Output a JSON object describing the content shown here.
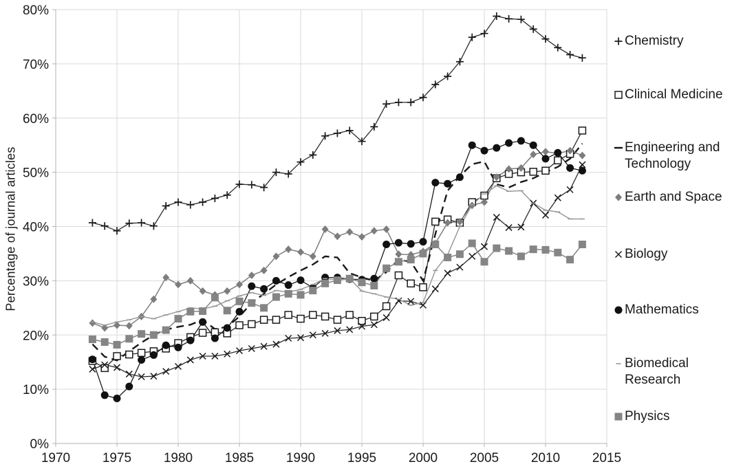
{
  "chart_data": {
    "type": "line",
    "title": "",
    "xlabel": "",
    "ylabel": "Percentage of journal articles",
    "xlim": [
      1970,
      2015
    ],
    "ylim": [
      0,
      80
    ],
    "grid": true,
    "legend_position": "right",
    "x_tick_values": [
      1970,
      1975,
      1980,
      1985,
      1990,
      1995,
      2000,
      2005,
      2010,
      2015
    ],
    "x_tick_labels": [
      "1970",
      "1975",
      "1980",
      "1985",
      "1990",
      "1995",
      "2000",
      "2005",
      "2010",
      "2015"
    ],
    "y_tick_values": [
      0,
      10,
      20,
      30,
      40,
      50,
      60,
      70,
      80
    ],
    "y_tick_labels": [
      "0%",
      "10%",
      "20%",
      "30%",
      "40%",
      "50%",
      "60%",
      "70%",
      "80%"
    ],
    "x": [
      1973,
      1974,
      1975,
      1976,
      1977,
      1978,
      1979,
      1980,
      1981,
      1982,
      1983,
      1984,
      1985,
      1986,
      1987,
      1988,
      1989,
      1990,
      1991,
      1992,
      1993,
      1994,
      1995,
      1996,
      1997,
      1998,
      1999,
      2000,
      2001,
      2002,
      2003,
      2004,
      2005,
      2006,
      2007,
      2008,
      2009,
      2010,
      2011,
      2012,
      2013
    ],
    "series": [
      {
        "name": "Chemistry",
        "marker": "plus",
        "line": "solid",
        "color": "#2b2b2b",
        "values": [
          40.7,
          40.1,
          39.2,
          40.6,
          40.7,
          40.1,
          43.8,
          44.5,
          44.0,
          44.5,
          45.2,
          45.8,
          47.8,
          47.7,
          47.2,
          50.0,
          49.7,
          51.9,
          53.2,
          56.7,
          57.2,
          57.7,
          55.7,
          58.4,
          62.6,
          62.9,
          62.9,
          63.8,
          66.2,
          67.7,
          70.4,
          74.9,
          75.6,
          78.8,
          78.3,
          78.2,
          76.4,
          74.6,
          73.0,
          71.7,
          71.1
        ]
      },
      {
        "name": "Clinical Medicine",
        "marker": "open-square",
        "line": "solid",
        "color": "#2b2b2b",
        "values": [
          15.2,
          13.9,
          16.1,
          16.4,
          16.7,
          17.0,
          17.5,
          18.5,
          19.6,
          20.4,
          20.5,
          20.3,
          21.8,
          22.0,
          22.8,
          22.8,
          23.7,
          23.0,
          23.7,
          23.4,
          22.8,
          23.7,
          22.6,
          23.4,
          25.3,
          31.0,
          29.5,
          28.8,
          40.9,
          41.3,
          40.7,
          44.5,
          45.7,
          48.9,
          49.7,
          50.0,
          50.1,
          50.3,
          52.2,
          53.4,
          57.7
        ]
      },
      {
        "name": "Engineering and Technology",
        "marker": "none",
        "line": "dashed",
        "color": "#1a1a1a",
        "values": [
          18.3,
          16.0,
          15.3,
          17.0,
          18.6,
          20.0,
          21.0,
          21.5,
          21.9,
          22.8,
          21.1,
          21.5,
          23.4,
          25.9,
          27.6,
          29.3,
          30.7,
          31.9,
          33.0,
          34.5,
          34.3,
          31.4,
          30.6,
          30.0,
          31.6,
          33.9,
          33.5,
          30.0,
          38.6,
          46.6,
          49.3,
          51.5,
          52.0,
          47.8,
          47.2,
          48.2,
          48.9,
          50.0,
          51.0,
          52.5,
          55.3
        ]
      },
      {
        "name": "Earth and Space",
        "marker": "diamond",
        "line": "solid",
        "color": "#7d7d7d",
        "values": [
          22.2,
          21.3,
          21.8,
          21.7,
          23.4,
          26.6,
          30.6,
          29.3,
          30.0,
          28.1,
          27.4,
          28.1,
          29.3,
          31.0,
          31.9,
          34.5,
          35.8,
          35.3,
          34.5,
          39.5,
          38.2,
          39.0,
          38.1,
          39.2,
          39.5,
          34.9,
          34.8,
          35.4,
          36.9,
          40.7,
          40.9,
          43.9,
          44.5,
          49.1,
          50.6,
          50.8,
          53.3,
          53.8,
          53.5,
          54.0,
          53.1
        ]
      },
      {
        "name": "Biology",
        "marker": "cross",
        "line": "solid",
        "color": "#2b2b2b",
        "values": [
          13.7,
          14.5,
          14.0,
          12.8,
          12.3,
          12.4,
          13.3,
          14.2,
          15.4,
          16.1,
          16.1,
          16.5,
          17.1,
          17.5,
          17.9,
          18.3,
          19.4,
          19.5,
          20.0,
          20.3,
          20.8,
          21.0,
          21.6,
          21.9,
          23.2,
          26.3,
          26.2,
          25.5,
          28.5,
          31.4,
          32.5,
          34.5,
          36.3,
          41.7,
          39.8,
          39.9,
          44.3,
          42.1,
          45.3,
          46.8,
          51.4
        ]
      },
      {
        "name": "Mathematics",
        "marker": "circle",
        "line": "solid",
        "color": "#1a1a1a",
        "values": [
          15.5,
          8.9,
          8.3,
          10.5,
          15.4,
          16.3,
          18.1,
          17.7,
          19.0,
          22.4,
          19.4,
          21.3,
          24.3,
          29.0,
          28.5,
          30.0,
          29.2,
          30.1,
          28.7,
          30.6,
          30.6,
          30.3,
          30.2,
          30.4,
          36.7,
          37.0,
          36.8,
          37.2,
          48.1,
          47.9,
          49.1,
          55.0,
          54.0,
          54.5,
          55.4,
          55.8,
          55.0,
          52.5,
          53.6,
          50.8,
          50.3
        ]
      },
      {
        "name": "Biomedical Research",
        "marker": "dash",
        "line": "solid",
        "color": "#9a9a9a",
        "values": [
          22.4,
          21.8,
          22.4,
          22.8,
          23.4,
          23.0,
          23.7,
          24.3,
          25.0,
          24.8,
          25.3,
          26.3,
          27.2,
          27.8,
          27.3,
          28.2,
          27.9,
          28.4,
          29.3,
          30.4,
          30.2,
          30.4,
          28.1,
          27.6,
          27.0,
          26.6,
          25.5,
          26.0,
          31.9,
          34.8,
          40.0,
          44.0,
          46.0,
          47.5,
          46.5,
          46.6,
          44.3,
          43.0,
          42.7,
          41.4,
          41.4
        ]
      },
      {
        "name": "Physics",
        "marker": "square",
        "line": "solid",
        "color": "#858585",
        "values": [
          19.2,
          18.7,
          18.2,
          19.3,
          20.2,
          20.0,
          20.9,
          23.0,
          24.3,
          24.4,
          26.9,
          24.5,
          26.2,
          25.9,
          25.0,
          27.0,
          27.6,
          27.4,
          28.2,
          29.5,
          30.1,
          30.4,
          29.7,
          29.1,
          32.3,
          33.5,
          33.9,
          35.0,
          36.7,
          34.3,
          34.9,
          36.9,
          33.5,
          36.0,
          35.5,
          34.5,
          35.8,
          35.7,
          35.2,
          33.9,
          36.7
        ]
      }
    ]
  },
  "legend": {
    "items": [
      "Chemistry",
      "Clinical Medicine",
      "Engineering and Technology",
      "Earth and Space",
      "Biology",
      "Mathematics",
      "Biomedical Research",
      "Physics"
    ]
  }
}
